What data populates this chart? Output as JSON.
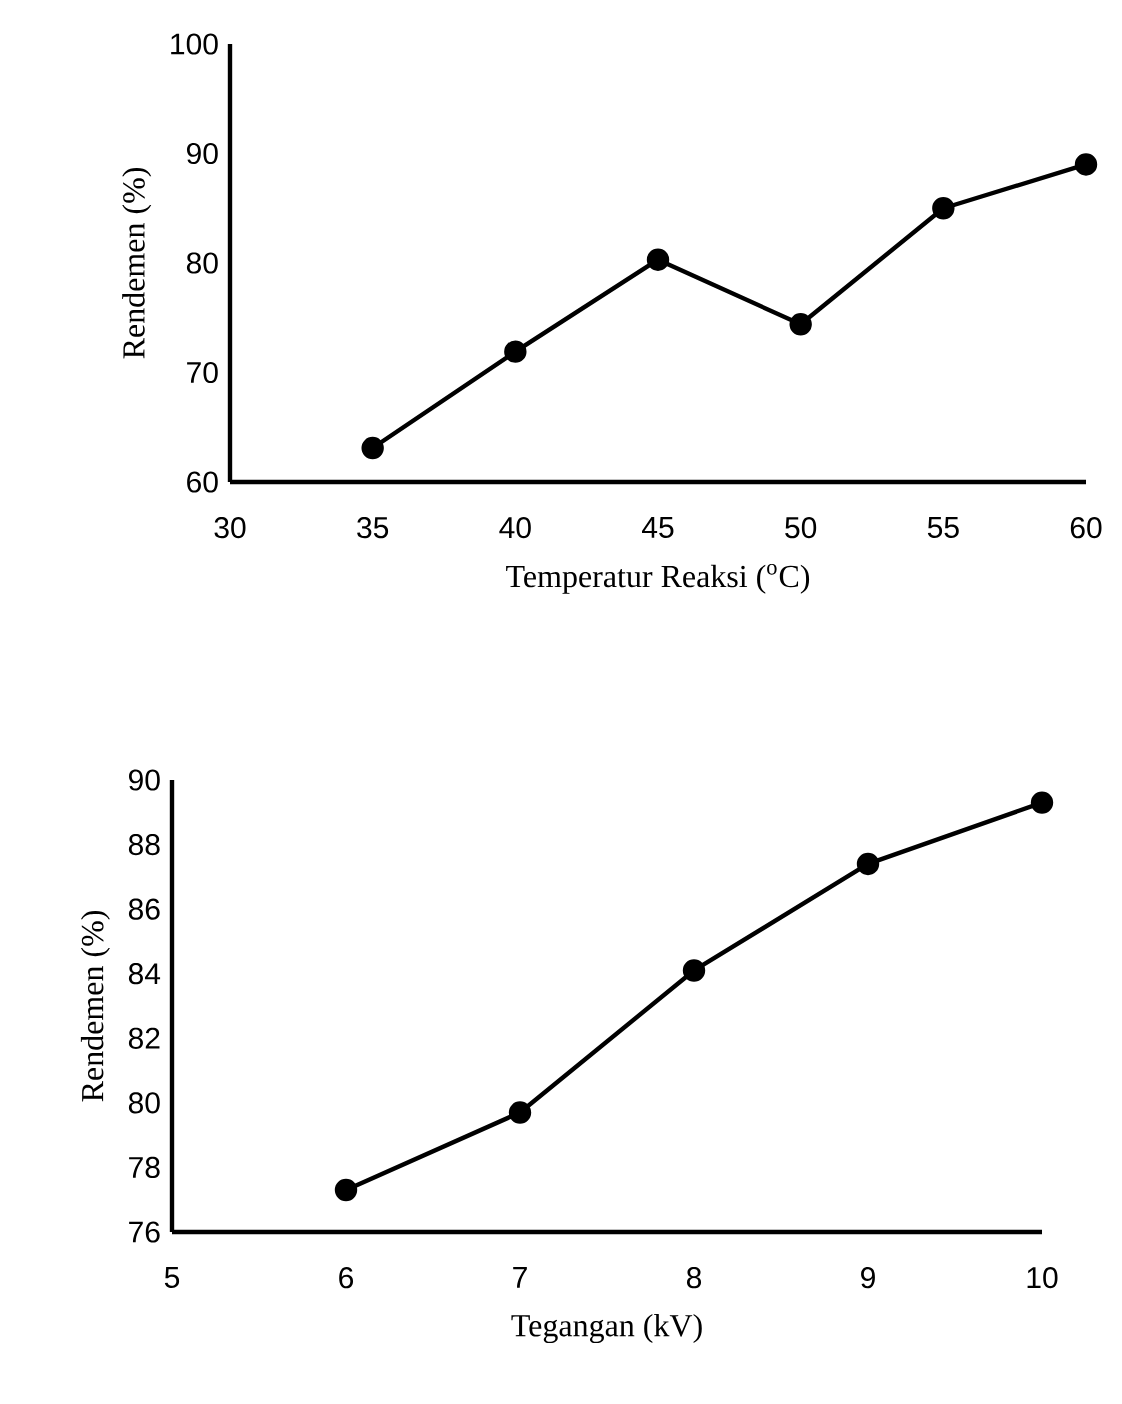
{
  "chart_data": [
    {
      "type": "line",
      "xlabel": "Temperatur Reaksi ($^{o}$C)",
      "ylabel": "Rendemen (%)",
      "x": [
        35,
        40,
        45,
        50,
        55,
        60
      ],
      "values": [
        63.1,
        71.9,
        80.3,
        74.4,
        85.0,
        89.0
      ],
      "color": "#000000",
      "xlim": [
        30,
        60
      ],
      "xticks": [
        30,
        35,
        40,
        45,
        50,
        55,
        60
      ],
      "ylim": [
        60,
        100
      ],
      "yticks": [
        60,
        70,
        80,
        90,
        100
      ],
      "marker": "circle",
      "line_style": "solid"
    },
    {
      "type": "line",
      "xlabel": "Tegangan (kV)",
      "ylabel": "Rendemen (%)",
      "x": [
        6,
        7,
        8,
        9,
        10
      ],
      "values": [
        77.3,
        79.7,
        84.1,
        87.4,
        89.3
      ],
      "color": "#000000",
      "xlim": [
        5,
        10
      ],
      "xticks": [
        5,
        6,
        7,
        8,
        9,
        10
      ],
      "ylim": [
        76,
        90
      ],
      "yticks": [
        76,
        78,
        80,
        82,
        84,
        86,
        88,
        90
      ],
      "marker": "circle",
      "line_style": "solid"
    }
  ]
}
